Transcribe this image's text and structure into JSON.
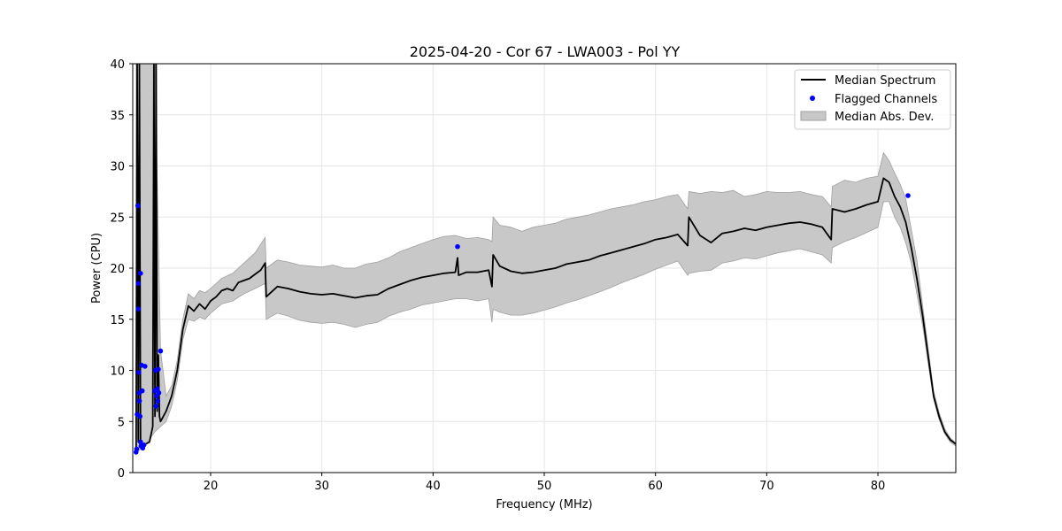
{
  "chart_data": {
    "type": "line",
    "title": "2025-04-20 - Cor 67 - LWA003 - Pol YY",
    "xlabel": "Frequency (MHz)",
    "ylabel": "Power (CPU)",
    "xlim": [
      13,
      87
    ],
    "ylim": [
      0,
      40
    ],
    "xticks": [
      20,
      30,
      40,
      50,
      60,
      70,
      80
    ],
    "yticks": [
      0,
      5,
      10,
      15,
      20,
      25,
      30,
      35,
      40
    ],
    "grid": true,
    "legend_position": "top-right",
    "colors": {
      "line": "#000000",
      "flag": "#0000ff",
      "band_fill": "#c8c8c8",
      "band_edge": "#a0a0a0"
    },
    "series": [
      {
        "name": "Median Spectrum",
        "kind": "line",
        "x": [
          13.3,
          13.4,
          13.5,
          13.6,
          13.7,
          13.75,
          13.8,
          13.9,
          14.0,
          14.5,
          14.8,
          14.9,
          15.0,
          15.1,
          15.2,
          15.3,
          15.4,
          15.5,
          16.0,
          16.5,
          17.0,
          17.5,
          18.0,
          18.5,
          19.0,
          19.5,
          20.0,
          20.5,
          21.0,
          21.5,
          22.0,
          22.5,
          23.0,
          23.5,
          24.0,
          24.5,
          24.9,
          25.0,
          26.0,
          27.0,
          28.0,
          29.0,
          30.0,
          31.0,
          32.0,
          33.0,
          34.0,
          35.0,
          36.0,
          37.0,
          38.0,
          39.0,
          40.0,
          41.0,
          42.0,
          42.2,
          42.3,
          43.0,
          44.0,
          45.0,
          45.3,
          45.4,
          46.0,
          47.0,
          48.0,
          49.0,
          50.0,
          51.0,
          52.0,
          53.0,
          54.0,
          55.0,
          56.0,
          57.0,
          58.0,
          59.0,
          60.0,
          61.0,
          62.0,
          62.9,
          63.0,
          64.0,
          65.0,
          66.0,
          67.0,
          68.0,
          69.0,
          70.0,
          71.0,
          72.0,
          73.0,
          74.0,
          75.0,
          75.8,
          75.9,
          77.0,
          78.0,
          79.0,
          80.0,
          80.5,
          81.0,
          81.5,
          82.0,
          82.5,
          83.0,
          83.5,
          84.0,
          84.5,
          85.0,
          85.5,
          86.0,
          86.5,
          87.0
        ],
        "y": [
          2.3,
          40.0,
          3.0,
          40.0,
          3.2,
          2.6,
          2.8,
          2.5,
          2.7,
          3.0,
          4.5,
          40.0,
          5.5,
          40.0,
          6.0,
          11.5,
          5.5,
          5.0,
          6.0,
          7.5,
          10.0,
          14.0,
          16.3,
          15.8,
          16.5,
          16.0,
          16.8,
          17.2,
          17.8,
          18.0,
          17.8,
          18.6,
          18.8,
          19.0,
          19.4,
          19.8,
          20.5,
          17.2,
          18.2,
          18.0,
          17.7,
          17.5,
          17.4,
          17.5,
          17.3,
          17.1,
          17.3,
          17.4,
          18.0,
          18.4,
          18.8,
          19.1,
          19.3,
          19.5,
          19.6,
          21.0,
          19.3,
          19.6,
          19.6,
          19.8,
          18.2,
          21.3,
          20.2,
          19.7,
          19.5,
          19.6,
          19.8,
          20.0,
          20.4,
          20.6,
          20.8,
          21.2,
          21.5,
          21.8,
          22.1,
          22.4,
          22.8,
          23.0,
          23.3,
          22.2,
          25.0,
          23.2,
          22.5,
          23.4,
          23.6,
          23.9,
          23.7,
          24.0,
          24.2,
          24.4,
          24.5,
          24.3,
          24.0,
          22.8,
          25.8,
          25.5,
          25.8,
          26.2,
          26.5,
          28.8,
          28.4,
          27.0,
          26.0,
          24.5,
          22.0,
          19.0,
          15.5,
          11.5,
          7.5,
          5.5,
          4.0,
          3.2,
          2.8
        ]
      },
      {
        "name": "Flagged Channels",
        "kind": "scatter",
        "x": [
          13.3,
          13.35,
          13.4,
          13.45,
          13.5,
          13.5,
          13.55,
          13.6,
          13.6,
          13.65,
          13.7,
          13.7,
          13.75,
          13.8,
          13.85,
          13.9,
          14.0,
          14.1,
          15.0,
          15.05,
          15.1,
          15.15,
          15.2,
          15.25,
          15.3,
          15.35,
          15.5,
          42.2,
          82.7
        ],
        "y": [
          2.0,
          2.3,
          5.7,
          26.1,
          16.0,
          18.5,
          9.8,
          7.8,
          7.0,
          5.5,
          19.5,
          3.0,
          2.6,
          10.5,
          8.0,
          2.4,
          2.7,
          10.4,
          8.0,
          10.0,
          6.5,
          7.5,
          8.2,
          7.0,
          10.1,
          7.8,
          11.9,
          22.1,
          27.1
        ]
      },
      {
        "name": "Median Abs. Dev.",
        "kind": "band",
        "x": [
          13.3,
          14.0,
          15.0,
          15.5,
          16.0,
          16.5,
          17.0,
          17.5,
          18.0,
          18.5,
          19.0,
          19.5,
          20.0,
          21.0,
          22.0,
          23.0,
          24.0,
          24.9,
          25.0,
          26.0,
          27.0,
          28.0,
          29.0,
          30.0,
          31.0,
          32.0,
          33.0,
          34.0,
          35.0,
          36.0,
          37.0,
          38.0,
          39.0,
          40.0,
          41.0,
          42.0,
          43.0,
          44.0,
          45.0,
          45.3,
          45.4,
          46.0,
          47.0,
          48.0,
          49.0,
          50.0,
          51.0,
          52.0,
          53.0,
          54.0,
          55.0,
          56.0,
          57.0,
          58.0,
          59.0,
          60.0,
          61.0,
          62.0,
          62.9,
          63.0,
          64.0,
          65.0,
          66.0,
          67.0,
          68.0,
          69.0,
          70.0,
          71.0,
          72.0,
          73.0,
          74.0,
          75.0,
          75.8,
          75.9,
          77.0,
          78.0,
          79.0,
          80.0,
          80.5,
          81.0,
          81.5,
          82.0,
          82.5,
          83.0,
          83.5,
          84.0,
          84.5,
          85.0,
          85.5,
          86.0,
          86.5,
          87.0
        ],
        "lower": [
          2.0,
          2.5,
          4.0,
          4.5,
          5.0,
          6.5,
          9.0,
          13.0,
          15.0,
          14.8,
          15.2,
          15.0,
          15.6,
          16.5,
          16.8,
          17.5,
          18.0,
          18.5,
          15.0,
          15.6,
          15.3,
          14.9,
          14.7,
          14.6,
          14.7,
          14.5,
          14.2,
          14.5,
          14.7,
          15.3,
          15.7,
          16.0,
          16.4,
          16.6,
          16.8,
          17.0,
          17.0,
          16.8,
          17.0,
          14.7,
          16.0,
          15.7,
          15.4,
          15.4,
          15.6,
          15.9,
          16.2,
          16.6,
          16.9,
          17.3,
          17.7,
          18.1,
          18.6,
          19.0,
          19.4,
          19.9,
          20.3,
          20.7,
          19.3,
          19.5,
          19.7,
          19.8,
          20.5,
          20.7,
          21.0,
          20.9,
          21.2,
          21.5,
          21.7,
          21.9,
          21.6,
          21.3,
          20.5,
          22.0,
          22.6,
          23.0,
          23.5,
          24.0,
          26.5,
          26.5,
          25.0,
          24.0,
          22.5,
          20.5,
          17.5,
          14.5,
          10.8,
          7.2,
          5.2,
          3.8,
          3.0,
          2.6
        ],
        "upper": [
          40.0,
          40.0,
          40.0,
          12.0,
          7.5,
          8.5,
          11.0,
          15.0,
          17.5,
          17.0,
          17.8,
          17.6,
          18.0,
          19.0,
          19.5,
          20.5,
          21.5,
          23.0,
          20.0,
          20.8,
          20.6,
          20.3,
          20.2,
          20.1,
          20.3,
          20.0,
          20.0,
          20.4,
          20.6,
          21.0,
          21.6,
          22.0,
          22.4,
          22.8,
          23.1,
          23.2,
          22.9,
          23.0,
          22.8,
          22.6,
          25.0,
          24.2,
          24.0,
          23.6,
          24.0,
          24.2,
          24.4,
          24.8,
          25.0,
          25.2,
          25.5,
          25.8,
          26.0,
          26.2,
          26.5,
          26.7,
          27.0,
          27.2,
          25.8,
          27.5,
          27.3,
          27.5,
          27.4,
          27.6,
          27.0,
          27.2,
          27.5,
          27.4,
          27.4,
          27.5,
          27.2,
          27.0,
          26.0,
          28.0,
          28.6,
          28.4,
          28.8,
          29.0,
          31.3,
          30.5,
          29.3,
          28.2,
          26.8,
          23.8,
          20.8,
          16.5,
          12.3,
          8.0,
          5.9,
          4.3,
          3.4,
          2.9
        ]
      }
    ]
  }
}
